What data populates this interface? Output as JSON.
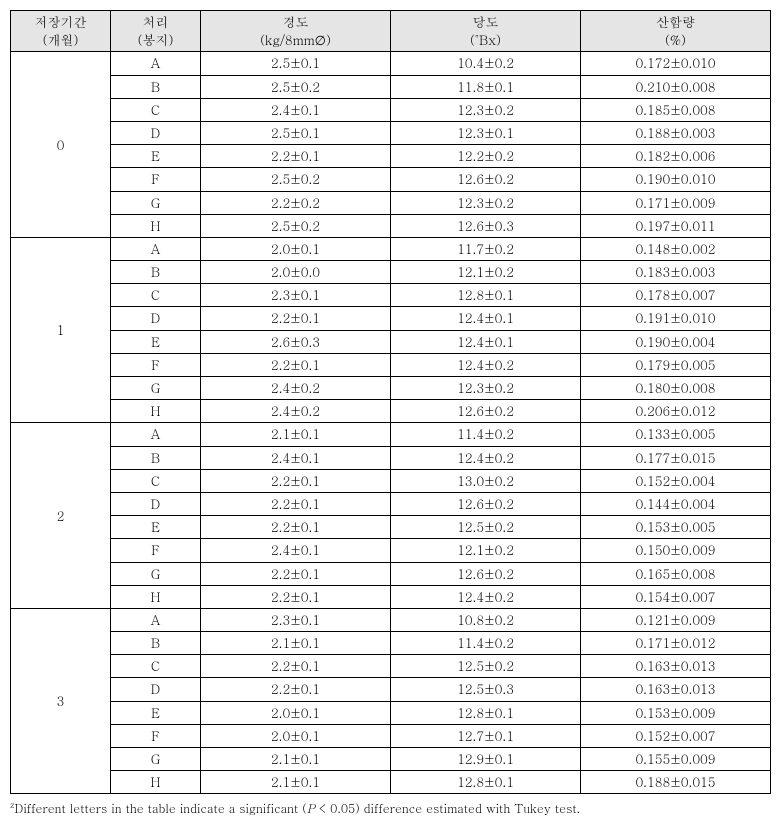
{
  "headers": [
    {
      "line1": "저장기간",
      "line2": "(개월)"
    },
    {
      "line1": "처리",
      "line2": "(봉지)"
    },
    {
      "line1": "경도",
      "line2": "(kg/8mm∅)"
    },
    {
      "line1": "당도",
      "line2": "(˚Bx)"
    },
    {
      "line1": "산함량",
      "line2": "(%)"
    }
  ],
  "groups": [
    {
      "period": "0",
      "rows": [
        {
          "t": "A",
          "h": "2.5±0.1",
          "b": "10.4±0.2",
          "a": "0.172±0.010"
        },
        {
          "t": "B",
          "h": "2.5±0.2",
          "b": "11.8±0.1",
          "a": "0.210±0.008"
        },
        {
          "t": "C",
          "h": "2.4±0.1",
          "b": "12.3±0.2",
          "a": "0.185±0.008"
        },
        {
          "t": "D",
          "h": "2.5±0.1",
          "b": "12.3±0.1",
          "a": "0.188±0.003"
        },
        {
          "t": "E",
          "h": "2.2±0.1",
          "b": "12.2±0.2",
          "a": "0.182±0.006"
        },
        {
          "t": "F",
          "h": "2.5±0.2",
          "b": "12.6±0.2",
          "a": "0.190±0.010"
        },
        {
          "t": "G",
          "h": "2.2±0.2",
          "b": "12.3±0.2",
          "a": "0.171±0.009"
        },
        {
          "t": "H",
          "h": "2.5±0.2",
          "b": "12.6±0.3",
          "a": "0.197±0.011"
        }
      ]
    },
    {
      "period": "1",
      "rows": [
        {
          "t": "A",
          "h": "2.0±0.1",
          "b": "11.7±0.2",
          "a": "0.148±0.002"
        },
        {
          "t": "B",
          "h": "2.0±0.0",
          "b": "12.1±0.2",
          "a": "0.183±0.003"
        },
        {
          "t": "C",
          "h": "2.3±0.1",
          "b": "12.8±0.1",
          "a": "0.178±0.007"
        },
        {
          "t": "D",
          "h": "2.2±0.1",
          "b": "12.4±0.1",
          "a": "0.191±0.010"
        },
        {
          "t": "E",
          "h": "2.6±0.3",
          "b": "12.4±0.1",
          "a": "0.190±0.004"
        },
        {
          "t": "F",
          "h": "2.2±0.1",
          "b": "12.4±0.2",
          "a": "0.179±0.005"
        },
        {
          "t": "G",
          "h": "2.4±0.2",
          "b": "12.3±0.2",
          "a": "0.180±0.008"
        },
        {
          "t": "H",
          "h": "2.4±0.2",
          "b": "12.6±0.2",
          "a": "0.206±0.012"
        }
      ]
    },
    {
      "period": "2",
      "rows": [
        {
          "t": "A",
          "h": "2.1±0.1",
          "b": "11.4±0.2",
          "a": "0.133±0.005"
        },
        {
          "t": "B",
          "h": "2.4±0.1",
          "b": "12.4±0.2",
          "a": "0.177±0.015"
        },
        {
          "t": "C",
          "h": "2.2±0.1",
          "b": "13.0±0.2",
          "a": "0.152±0.004"
        },
        {
          "t": "D",
          "h": "2.2±0.1",
          "b": "12.6±0.2",
          "a": "0.144±0.004"
        },
        {
          "t": "E",
          "h": "2.2±0.1",
          "b": "12.5±0.2",
          "a": "0.153±0.005"
        },
        {
          "t": "F",
          "h": "2.4±0.1",
          "b": "12.1±0.2",
          "a": "0.150±0.009"
        },
        {
          "t": "G",
          "h": "2.2±0.1",
          "b": "12.6±0.2",
          "a": "0.165±0.008"
        },
        {
          "t": "H",
          "h": "2.2±0.1",
          "b": "12.4±0.2",
          "a": "0.154±0.007"
        }
      ]
    },
    {
      "period": "3",
      "rows": [
        {
          "t": "A",
          "h": "2.3±0.1",
          "b": "10.8±0.2",
          "a": "0.121±0.009"
        },
        {
          "t": "B",
          "h": "2.1±0.1",
          "b": "11.4±0.2",
          "a": "0.171±0.012"
        },
        {
          "t": "C",
          "h": "2.2±0.1",
          "b": "12.5±0.2",
          "a": "0.163±0.013"
        },
        {
          "t": "D",
          "h": "2.2±0.1",
          "b": "12.5±0.3",
          "a": "0.163±0.013"
        },
        {
          "t": "E",
          "h": "2.0±0.1",
          "b": "12.8±0.1",
          "a": "0.153±0.009"
        },
        {
          "t": "F",
          "h": "2.0±0.1",
          "b": "12.7±0.1",
          "a": "0.152±0.007"
        },
        {
          "t": "G",
          "h": "2.1±0.1",
          "b": "12.9±0.1",
          "a": "0.155±0.009"
        },
        {
          "t": "H",
          "h": "2.1±0.1",
          "b": "12.8±0.1",
          "a": "0.188±0.015"
        }
      ]
    }
  ],
  "footnote_pre": "Different letters in the table indicate a significant (",
  "footnote_p": "P",
  "footnote_post": " < 0.05) difference estimated with Tukey test.",
  "footnote_sup": "z"
}
